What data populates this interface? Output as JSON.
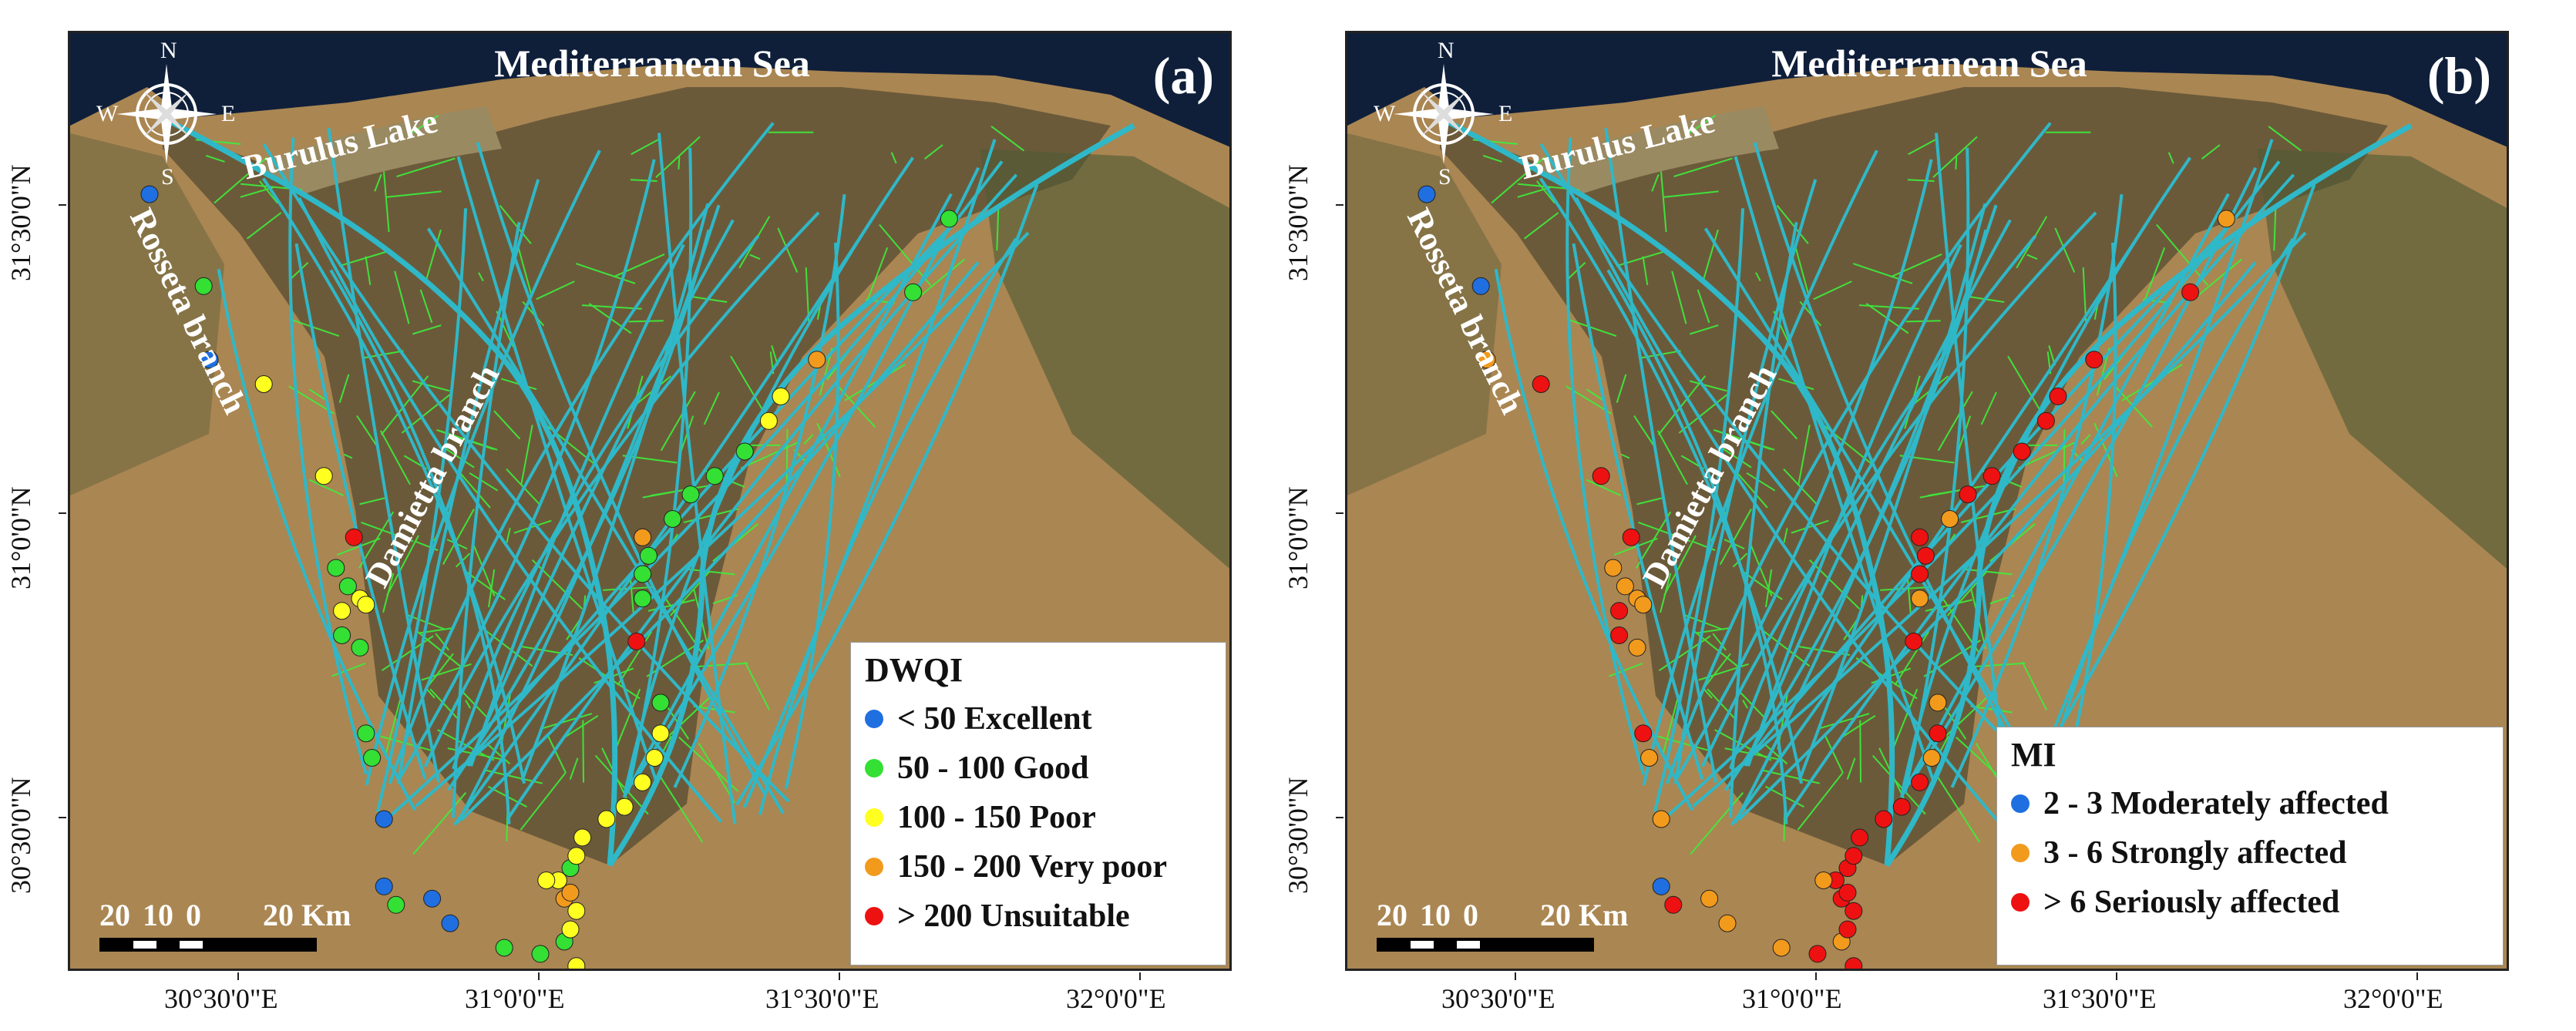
{
  "panels": [
    {
      "id": "a",
      "letter": "(a)",
      "sea_label": "Mediterranean Sea",
      "lake_label": "Burulus Lake",
      "left_branch_label": "Rosseta branch",
      "right_branch_label": "Damietta branch",
      "compass": {
        "n": "N",
        "s": "S",
        "e": "E",
        "w": "W"
      },
      "scale": {
        "labels": [
          "20",
          "10",
          "0",
          "20 Km"
        ]
      },
      "x_ticks": [
        "30°30'0\"E",
        "31°0'0\"E",
        "31°30'0\"E",
        "32°0'0\"E"
      ],
      "y_ticks": [
        "31°30'0\"N",
        "31°0'0\"N",
        "30°30'0\"N"
      ],
      "legend": {
        "title": "DWQI",
        "items": [
          {
            "label": "< 50 Excellent",
            "color": "#1f6fe0",
            "key": "excellent"
          },
          {
            "label": "50 - 100 Good",
            "color": "#33e033",
            "key": "good"
          },
          {
            "label": "100 - 150 Poor",
            "color": "#ffff20",
            "key": "poor"
          },
          {
            "label": "150 - 200 Very poor",
            "color": "#f29a1c",
            "key": "very-poor"
          },
          {
            "label": "> 200 Unsuitable",
            "color": "#ee1111",
            "key": "unsuitable"
          }
        ]
      }
    },
    {
      "id": "b",
      "letter": "(b)",
      "sea_label": "Mediterranean Sea",
      "lake_label": "Burulus Lake",
      "left_branch_label": "Rosseta branch",
      "right_branch_label": "Damietta branch",
      "compass": {
        "n": "N",
        "s": "S",
        "e": "E",
        "w": "W"
      },
      "scale": {
        "labels": [
          "20",
          "10",
          "0",
          "20 Km"
        ]
      },
      "x_ticks": [
        "30°30'0\"E",
        "31°0'0\"E",
        "31°30'0\"E",
        "32°0'0\"E"
      ],
      "y_ticks": [
        "31°30'0\"N",
        "31°0'0\"N",
        "30°30'0\"N"
      ],
      "legend": {
        "title": "MI",
        "items": [
          {
            "label": "2 - 3 Moderately affected",
            "color": "#1f6fe0",
            "key": "moderate"
          },
          {
            "label": "3 - 6 Strongly affected",
            "color": "#f29a1c",
            "key": "strong"
          },
          {
            "label": "> 6 Seriously affected",
            "color": "#ee1111",
            "key": "serious"
          }
        ]
      }
    }
  ],
  "sample_points": {
    "a": [
      {
        "lon": 30.35,
        "lat": 31.52,
        "cls": "excellent"
      },
      {
        "lon": 30.44,
        "lat": 31.37,
        "cls": "good"
      },
      {
        "lon": 30.45,
        "lat": 31.25,
        "cls": "excellent"
      },
      {
        "lon": 30.54,
        "lat": 31.21,
        "cls": "poor"
      },
      {
        "lon": 30.64,
        "lat": 31.06,
        "cls": "poor"
      },
      {
        "lon": 30.69,
        "lat": 30.96,
        "cls": "unsuitable"
      },
      {
        "lon": 30.66,
        "lat": 30.91,
        "cls": "good"
      },
      {
        "lon": 30.68,
        "lat": 30.88,
        "cls": "good"
      },
      {
        "lon": 30.67,
        "lat": 30.84,
        "cls": "poor"
      },
      {
        "lon": 30.7,
        "lat": 30.86,
        "cls": "poor"
      },
      {
        "lon": 30.71,
        "lat": 30.85,
        "cls": "poor"
      },
      {
        "lon": 30.67,
        "lat": 30.8,
        "cls": "good"
      },
      {
        "lon": 30.7,
        "lat": 30.78,
        "cls": "good"
      },
      {
        "lon": 30.71,
        "lat": 30.64,
        "cls": "good"
      },
      {
        "lon": 30.72,
        "lat": 30.6,
        "cls": "good"
      },
      {
        "lon": 30.74,
        "lat": 30.5,
        "cls": "excellent"
      },
      {
        "lon": 30.74,
        "lat": 30.39,
        "cls": "excellent"
      },
      {
        "lon": 30.76,
        "lat": 30.36,
        "cls": "good"
      },
      {
        "lon": 30.82,
        "lat": 30.37,
        "cls": "excellent"
      },
      {
        "lon": 30.85,
        "lat": 30.33,
        "cls": "excellent"
      },
      {
        "lon": 30.94,
        "lat": 30.29,
        "cls": "good"
      },
      {
        "lon": 31.0,
        "lat": 30.28,
        "cls": "good"
      },
      {
        "lon": 31.04,
        "lat": 30.3,
        "cls": "good"
      },
      {
        "lon": 31.06,
        "lat": 30.26,
        "cls": "poor"
      },
      {
        "lon": 31.05,
        "lat": 30.32,
        "cls": "poor"
      },
      {
        "lon": 31.06,
        "lat": 30.35,
        "cls": "poor"
      },
      {
        "lon": 31.04,
        "lat": 30.37,
        "cls": "very-poor"
      },
      {
        "lon": 31.05,
        "lat": 30.38,
        "cls": "very-poor"
      },
      {
        "lon": 31.05,
        "lat": 30.42,
        "cls": "good"
      },
      {
        "lon": 31.03,
        "lat": 30.4,
        "cls": "poor"
      },
      {
        "lon": 31.01,
        "lat": 30.4,
        "cls": "poor"
      },
      {
        "lon": 31.06,
        "lat": 30.44,
        "cls": "poor"
      },
      {
        "lon": 31.07,
        "lat": 30.47,
        "cls": "poor"
      },
      {
        "lon": 31.11,
        "lat": 30.5,
        "cls": "poor"
      },
      {
        "lon": 31.14,
        "lat": 30.52,
        "cls": "poor"
      },
      {
        "lon": 31.17,
        "lat": 30.56,
        "cls": "poor"
      },
      {
        "lon": 31.19,
        "lat": 30.6,
        "cls": "poor"
      },
      {
        "lon": 31.2,
        "lat": 30.64,
        "cls": "poor"
      },
      {
        "lon": 31.2,
        "lat": 30.69,
        "cls": "good"
      },
      {
        "lon": 31.16,
        "lat": 30.79,
        "cls": "unsuitable"
      },
      {
        "lon": 31.17,
        "lat": 30.86,
        "cls": "good"
      },
      {
        "lon": 31.17,
        "lat": 30.9,
        "cls": "good"
      },
      {
        "lon": 31.18,
        "lat": 30.93,
        "cls": "good"
      },
      {
        "lon": 31.17,
        "lat": 30.96,
        "cls": "very-poor"
      },
      {
        "lon": 31.22,
        "lat": 30.99,
        "cls": "good"
      },
      {
        "lon": 31.25,
        "lat": 31.03,
        "cls": "good"
      },
      {
        "lon": 31.29,
        "lat": 31.06,
        "cls": "good"
      },
      {
        "lon": 31.34,
        "lat": 31.1,
        "cls": "good"
      },
      {
        "lon": 31.38,
        "lat": 31.15,
        "cls": "poor"
      },
      {
        "lon": 31.4,
        "lat": 31.19,
        "cls": "poor"
      },
      {
        "lon": 31.46,
        "lat": 31.25,
        "cls": "very-poor"
      },
      {
        "lon": 31.62,
        "lat": 31.36,
        "cls": "good"
      },
      {
        "lon": 31.68,
        "lat": 31.48,
        "cls": "good"
      }
    ],
    "b": [
      {
        "lon": 30.35,
        "lat": 31.52,
        "cls": "moderate"
      },
      {
        "lon": 30.44,
        "lat": 31.37,
        "cls": "moderate"
      },
      {
        "lon": 30.45,
        "lat": 31.25,
        "cls": "strong"
      },
      {
        "lon": 30.54,
        "lat": 31.21,
        "cls": "serious"
      },
      {
        "lon": 30.64,
        "lat": 31.06,
        "cls": "serious"
      },
      {
        "lon": 30.69,
        "lat": 30.96,
        "cls": "serious"
      },
      {
        "lon": 30.66,
        "lat": 30.91,
        "cls": "strong"
      },
      {
        "lon": 30.68,
        "lat": 30.88,
        "cls": "strong"
      },
      {
        "lon": 30.67,
        "lat": 30.84,
        "cls": "serious"
      },
      {
        "lon": 30.7,
        "lat": 30.86,
        "cls": "strong"
      },
      {
        "lon": 30.71,
        "lat": 30.85,
        "cls": "strong"
      },
      {
        "lon": 30.67,
        "lat": 30.8,
        "cls": "serious"
      },
      {
        "lon": 30.7,
        "lat": 30.78,
        "cls": "strong"
      },
      {
        "lon": 30.71,
        "lat": 30.64,
        "cls": "serious"
      },
      {
        "lon": 30.72,
        "lat": 30.6,
        "cls": "strong"
      },
      {
        "lon": 30.74,
        "lat": 30.5,
        "cls": "strong"
      },
      {
        "lon": 30.74,
        "lat": 30.39,
        "cls": "moderate"
      },
      {
        "lon": 30.76,
        "lat": 30.36,
        "cls": "serious"
      },
      {
        "lon": 30.82,
        "lat": 30.37,
        "cls": "strong"
      },
      {
        "lon": 30.85,
        "lat": 30.33,
        "cls": "strong"
      },
      {
        "lon": 30.94,
        "lat": 30.29,
        "cls": "strong"
      },
      {
        "lon": 31.0,
        "lat": 30.28,
        "cls": "serious"
      },
      {
        "lon": 31.04,
        "lat": 30.3,
        "cls": "strong"
      },
      {
        "lon": 31.06,
        "lat": 30.26,
        "cls": "serious"
      },
      {
        "lon": 31.05,
        "lat": 30.32,
        "cls": "serious"
      },
      {
        "lon": 31.06,
        "lat": 30.35,
        "cls": "serious"
      },
      {
        "lon": 31.04,
        "lat": 30.37,
        "cls": "serious"
      },
      {
        "lon": 31.05,
        "lat": 30.38,
        "cls": "serious"
      },
      {
        "lon": 31.05,
        "lat": 30.42,
        "cls": "serious"
      },
      {
        "lon": 31.03,
        "lat": 30.4,
        "cls": "serious"
      },
      {
        "lon": 31.01,
        "lat": 30.4,
        "cls": "strong"
      },
      {
        "lon": 31.06,
        "lat": 30.44,
        "cls": "serious"
      },
      {
        "lon": 31.07,
        "lat": 30.47,
        "cls": "serious"
      },
      {
        "lon": 31.11,
        "lat": 30.5,
        "cls": "serious"
      },
      {
        "lon": 31.14,
        "lat": 30.52,
        "cls": "serious"
      },
      {
        "lon": 31.17,
        "lat": 30.56,
        "cls": "serious"
      },
      {
        "lon": 31.19,
        "lat": 30.6,
        "cls": "strong"
      },
      {
        "lon": 31.2,
        "lat": 30.64,
        "cls": "serious"
      },
      {
        "lon": 31.2,
        "lat": 30.69,
        "cls": "strong"
      },
      {
        "lon": 31.16,
        "lat": 30.79,
        "cls": "serious"
      },
      {
        "lon": 31.17,
        "lat": 30.86,
        "cls": "strong"
      },
      {
        "lon": 31.17,
        "lat": 30.9,
        "cls": "serious"
      },
      {
        "lon": 31.18,
        "lat": 30.93,
        "cls": "serious"
      },
      {
        "lon": 31.17,
        "lat": 30.96,
        "cls": "serious"
      },
      {
        "lon": 31.22,
        "lat": 30.99,
        "cls": "strong"
      },
      {
        "lon": 31.25,
        "lat": 31.03,
        "cls": "serious"
      },
      {
        "lon": 31.29,
        "lat": 31.06,
        "cls": "serious"
      },
      {
        "lon": 31.34,
        "lat": 31.1,
        "cls": "serious"
      },
      {
        "lon": 31.38,
        "lat": 31.15,
        "cls": "serious"
      },
      {
        "lon": 31.4,
        "lat": 31.19,
        "cls": "serious"
      },
      {
        "lon": 31.46,
        "lat": 31.25,
        "cls": "serious"
      },
      {
        "lon": 31.62,
        "lat": 31.36,
        "cls": "serious"
      },
      {
        "lon": 31.68,
        "lat": 31.48,
        "cls": "strong"
      }
    ]
  },
  "colors": {
    "sea": "#0f1f3a",
    "land_desert": "#b48a55",
    "land_delta": "#6b5a3a",
    "canal_cyan": "#2fb8c8",
    "drain_green": "#3cf03c"
  }
}
